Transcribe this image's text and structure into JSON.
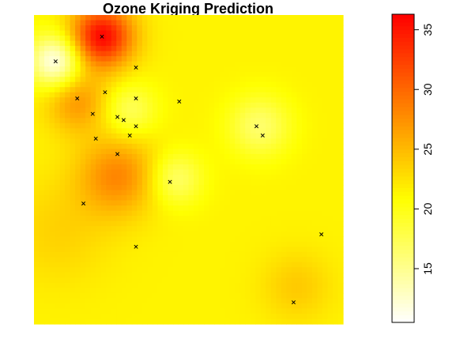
{
  "chart_data": {
    "type": "heatmap",
    "title": "Ozone Kriging Prediction",
    "xlabel": "",
    "ylabel": "",
    "axes_shown": false,
    "grid": false,
    "color_scale": {
      "palette": "heat",
      "low_color": "#ffffff",
      "mid_color": "#ffff00",
      "high_color": "#ff0000",
      "range": [
        10.5,
        36.3
      ],
      "ticks": [
        15,
        20,
        25,
        30,
        35
      ],
      "tick_labels": [
        "15",
        "20",
        "25",
        "30",
        "35"
      ],
      "placement": "right"
    },
    "surface": {
      "background_value": 21.5,
      "features": [
        {
          "u": 0.22,
          "v": 0.07,
          "value": 36,
          "spread": 0.07
        },
        {
          "u": 0.07,
          "v": 0.15,
          "value": 11,
          "spread": 0.06
        },
        {
          "u": 0.14,
          "v": 0.28,
          "value": 27,
          "spread": 0.07
        },
        {
          "u": 0.27,
          "v": 0.52,
          "value": 28,
          "spread": 0.09
        },
        {
          "u": 0.31,
          "v": 0.31,
          "value": 17,
          "spread": 0.06
        },
        {
          "u": 0.46,
          "v": 0.53,
          "value": 16.5,
          "spread": 0.06
        },
        {
          "u": 0.73,
          "v": 0.36,
          "value": 16.5,
          "spread": 0.07
        },
        {
          "u": 0.85,
          "v": 0.88,
          "value": 24,
          "spread": 0.08
        },
        {
          "u": 0.08,
          "v": 0.7,
          "value": 23.5,
          "spread": 0.12
        }
      ]
    },
    "stations": [
      {
        "u": 0.22,
        "v": 0.07
      },
      {
        "u": 0.07,
        "v": 0.15
      },
      {
        "u": 0.33,
        "v": 0.17
      },
      {
        "u": 0.14,
        "v": 0.27
      },
      {
        "u": 0.23,
        "v": 0.25
      },
      {
        "u": 0.33,
        "v": 0.27
      },
      {
        "u": 0.47,
        "v": 0.28
      },
      {
        "u": 0.19,
        "v": 0.32
      },
      {
        "u": 0.27,
        "v": 0.33
      },
      {
        "u": 0.29,
        "v": 0.34
      },
      {
        "u": 0.33,
        "v": 0.36
      },
      {
        "u": 0.2,
        "v": 0.4
      },
      {
        "u": 0.31,
        "v": 0.39
      },
      {
        "u": 0.72,
        "v": 0.36
      },
      {
        "u": 0.74,
        "v": 0.39
      },
      {
        "u": 0.27,
        "v": 0.45
      },
      {
        "u": 0.44,
        "v": 0.54
      },
      {
        "u": 0.16,
        "v": 0.61
      },
      {
        "u": 0.33,
        "v": 0.75
      },
      {
        "u": 0.93,
        "v": 0.71
      },
      {
        "u": 0.84,
        "v": 0.93
      }
    ]
  }
}
